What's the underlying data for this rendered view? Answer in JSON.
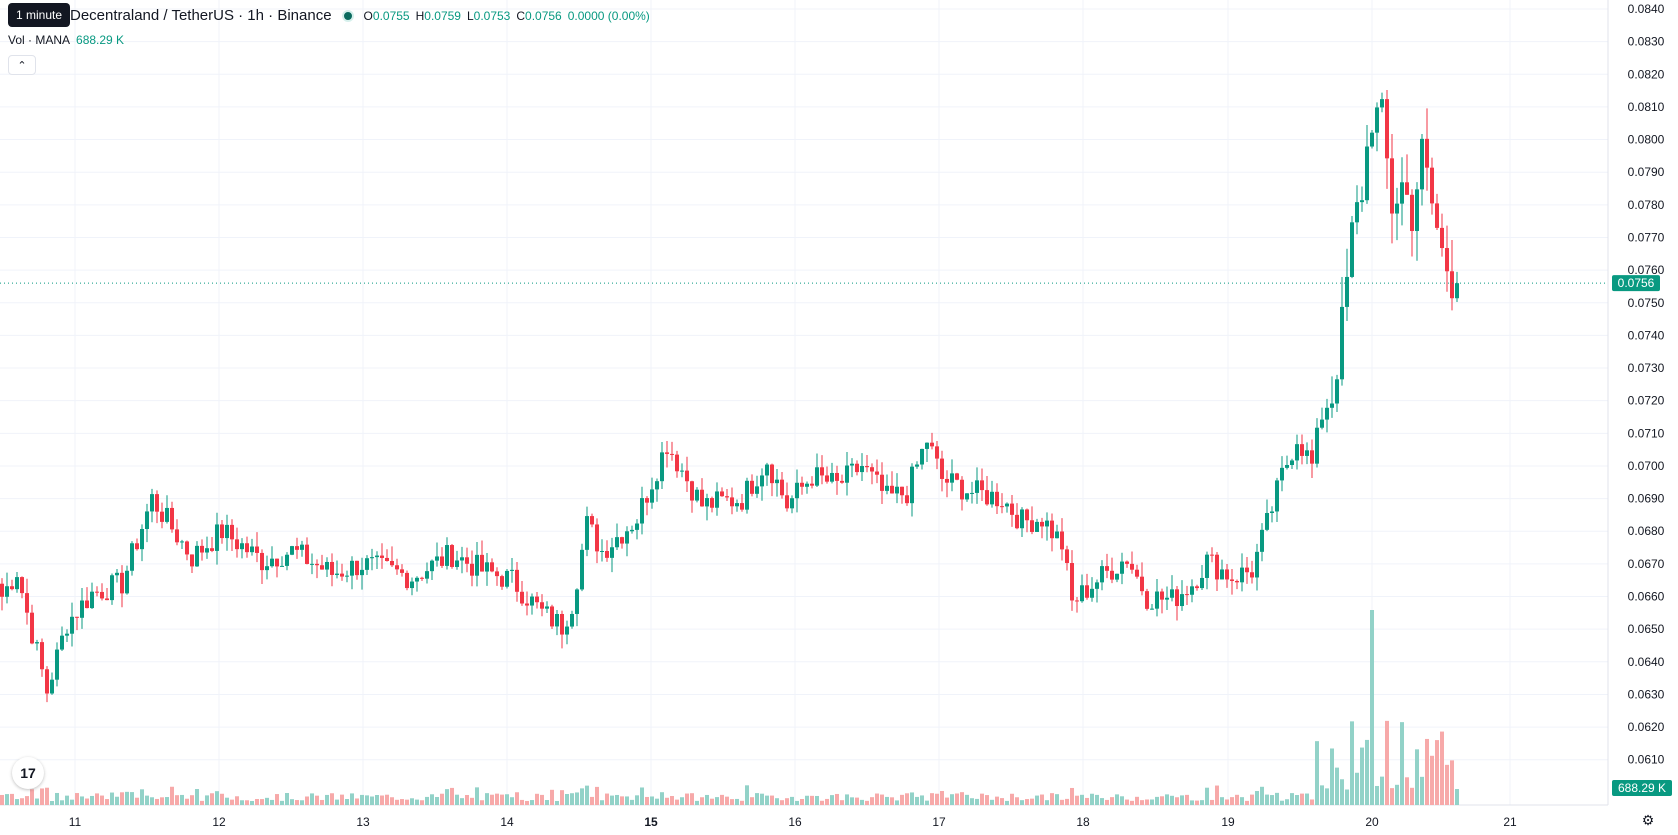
{
  "header": {
    "symbol_title": "Decentraland / TetherUS · 1h · Binance",
    "tooltip": "1 minute",
    "ohlc": {
      "o_label": "O",
      "o": "0.0755",
      "h_label": "H",
      "h": "0.0759",
      "l_label": "L",
      "l": "0.0753",
      "c_label": "C",
      "c": "0.0756",
      "change": "0.0000 (0.00%)"
    },
    "volume": {
      "label": "Vol · MANA",
      "value": "688.29 K"
    },
    "collapse_icon": "chevron-up-icon"
  },
  "colors": {
    "up": "#089981",
    "down": "#f23645",
    "up_vol": "#92d2c8",
    "down_vol": "#f7a9a9",
    "grid": "#f0f3fa"
  },
  "price_axis": {
    "ticks": [
      "0.0840",
      "0.0830",
      "0.0820",
      "0.0810",
      "0.0800",
      "0.0790",
      "0.0780",
      "0.0770",
      "0.0760",
      "0.0750",
      "0.0740",
      "0.0730",
      "0.0720",
      "0.0710",
      "0.0700",
      "0.0690",
      "0.0680",
      "0.0670",
      "0.0660",
      "0.0650",
      "0.0640",
      "0.0630",
      "0.0620",
      "0.0610"
    ],
    "last_price_label": "0.0756",
    "last_volume_label": "688.29 K"
  },
  "time_axis": {
    "ticks": [
      {
        "label": "11",
        "bold": false
      },
      {
        "label": "12",
        "bold": false
      },
      {
        "label": "13",
        "bold": false
      },
      {
        "label": "14",
        "bold": false
      },
      {
        "label": "15",
        "bold": true
      },
      {
        "label": "16",
        "bold": false
      },
      {
        "label": "17",
        "bold": false
      },
      {
        "label": "18",
        "bold": false
      },
      {
        "label": "19",
        "bold": false
      },
      {
        "label": "20",
        "bold": false
      },
      {
        "label": "21",
        "bold": false
      }
    ]
  },
  "chart_data": {
    "type": "candlestick",
    "interval": "1h",
    "ylim": [
      0.0605,
      0.0842
    ],
    "last_price": 0.0756,
    "path": [
      [
        0,
        0.066
      ],
      [
        3,
        0.0668
      ],
      [
        5,
        0.0655
      ],
      [
        7,
        0.0643
      ],
      [
        9,
        0.0631
      ],
      [
        13,
        0.0652
      ],
      [
        18,
        0.0661
      ],
      [
        24,
        0.0664
      ],
      [
        30,
        0.069
      ],
      [
        38,
        0.0672
      ],
      [
        44,
        0.068
      ],
      [
        52,
        0.0671
      ],
      [
        58,
        0.0674
      ],
      [
        66,
        0.0667
      ],
      [
        72,
        0.067
      ],
      [
        82,
        0.0666
      ],
      [
        90,
        0.0673
      ],
      [
        96,
        0.0668
      ],
      [
        102,
        0.0665
      ],
      [
        108,
        0.0655
      ],
      [
        112,
        0.0651
      ],
      [
        114,
        0.0658
      ],
      [
        117,
        0.0682
      ],
      [
        120,
        0.0674
      ],
      [
        127,
        0.0684
      ],
      [
        133,
        0.0707
      ],
      [
        137,
        0.0696
      ],
      [
        140,
        0.0688
      ],
      [
        148,
        0.069
      ],
      [
        153,
        0.0702
      ],
      [
        157,
        0.0688
      ],
      [
        162,
        0.0697
      ],
      [
        167,
        0.0694
      ],
      [
        172,
        0.07
      ],
      [
        177,
        0.069
      ],
      [
        181,
        0.0692
      ],
      [
        185,
        0.0708
      ],
      [
        188,
        0.0696
      ],
      [
        194,
        0.0692
      ],
      [
        200,
        0.069
      ],
      [
        204,
        0.0683
      ],
      [
        208,
        0.0684
      ],
      [
        212,
        0.0676
      ],
      [
        214,
        0.0658
      ],
      [
        219,
        0.0665
      ],
      [
        225,
        0.0672
      ],
      [
        229,
        0.066
      ],
      [
        234,
        0.0659
      ],
      [
        238,
        0.0664
      ],
      [
        241,
        0.0671
      ],
      [
        246,
        0.0666
      ],
      [
        250,
        0.0668
      ],
      [
        253,
        0.0682
      ],
      [
        256,
        0.0697
      ],
      [
        259,
        0.0709
      ],
      [
        262,
        0.07
      ],
      [
        264,
        0.0716
      ],
      [
        266,
        0.0722
      ],
      [
        268,
        0.0742
      ],
      [
        270,
        0.077
      ],
      [
        272,
        0.0785
      ],
      [
        274,
        0.0808
      ],
      [
        276,
        0.0805
      ],
      [
        278,
        0.078
      ],
      [
        280,
        0.0786
      ],
      [
        282,
        0.0778
      ],
      [
        284,
        0.0795
      ],
      [
        286,
        0.078
      ],
      [
        288,
        0.0765
      ],
      [
        290,
        0.0758
      ],
      [
        291,
        0.0756
      ]
    ]
  }
}
